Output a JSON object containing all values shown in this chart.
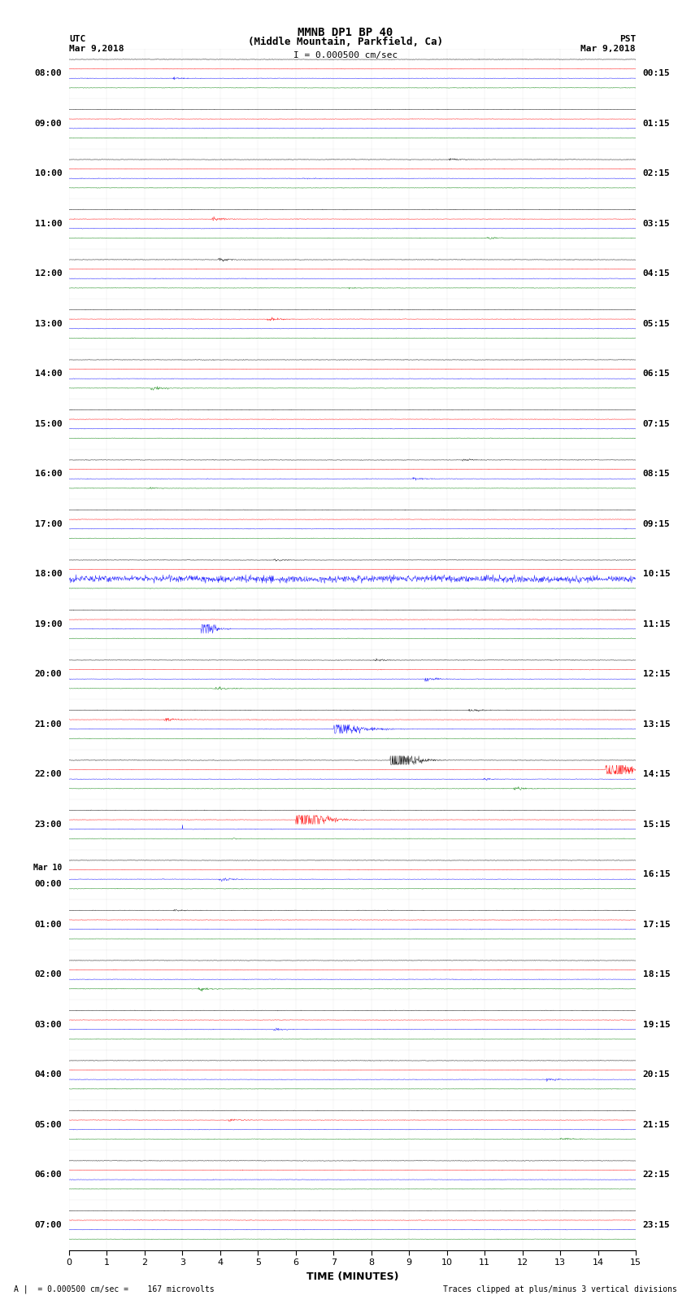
{
  "title_line1": "MMNB DP1 BP 40",
  "title_line2": "(Middle Mountain, Parkfield, Ca)",
  "scale_text": "I = 0.000500 cm/sec",
  "left_header": "UTC",
  "left_date": "Mar 9,2018",
  "right_header": "PST",
  "right_date": "Mar 9,2018",
  "xlabel": "TIME (MINUTES)",
  "footer_left": "A |  = 0.000500 cm/sec =    167 microvolts",
  "footer_right": "Traces clipped at plus/minus 3 vertical divisions",
  "utc_labels": [
    "08:00",
    "09:00",
    "10:00",
    "11:00",
    "12:00",
    "13:00",
    "14:00",
    "15:00",
    "16:00",
    "17:00",
    "18:00",
    "19:00",
    "20:00",
    "21:00",
    "22:00",
    "23:00",
    "Mar 10\n00:00",
    "01:00",
    "02:00",
    "03:00",
    "04:00",
    "05:00",
    "06:00",
    "07:00"
  ],
  "pst_labels": [
    "00:15",
    "01:15",
    "02:15",
    "03:15",
    "04:15",
    "05:15",
    "06:15",
    "07:15",
    "08:15",
    "09:15",
    "10:15",
    "11:15",
    "12:15",
    "13:15",
    "14:15",
    "15:15",
    "16:15",
    "17:15",
    "18:15",
    "19:15",
    "20:15",
    "21:15",
    "22:15",
    "23:15"
  ],
  "n_rows": 24,
  "traces_per_row": 4,
  "trace_colors": [
    "black",
    "red",
    "blue",
    "green"
  ],
  "bg_color": "white",
  "noise_amplitude": 0.08,
  "minutes": 15,
  "samples_per_minute": 100,
  "figsize": [
    8.5,
    16.13
  ],
  "dpi": 100
}
